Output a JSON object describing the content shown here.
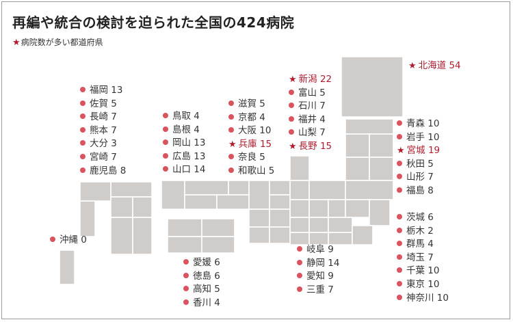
{
  "title": "再編や統合の検討を迫られた全国の424病院",
  "legend": {
    "marker": "★",
    "label": "病院数が多い都道府県"
  },
  "colors": {
    "highlight": "#b01c2e",
    "dot": "#d9545e",
    "tile": "#cfccca"
  },
  "groups": {
    "hokkaido": [
      {
        "label": "北海道 54",
        "marker": "star"
      }
    ],
    "kyushu": [
      {
        "label": "福岡 13",
        "marker": "dot"
      },
      {
        "label": "佐賀 5",
        "marker": "dot"
      },
      {
        "label": "長崎 7",
        "marker": "dot"
      },
      {
        "label": "熊本 7",
        "marker": "dot"
      },
      {
        "label": "大分 3",
        "marker": "dot"
      },
      {
        "label": "宮崎 7",
        "marker": "dot"
      },
      {
        "label": "鹿児島 8",
        "marker": "dot"
      }
    ],
    "chugoku": [
      {
        "label": "鳥取 4",
        "marker": "dot"
      },
      {
        "label": "島根 4",
        "marker": "dot"
      },
      {
        "label": "岡山 13",
        "marker": "dot"
      },
      {
        "label": "広島 13",
        "marker": "dot"
      },
      {
        "label": "山口 14",
        "marker": "dot"
      }
    ],
    "kinki": [
      {
        "label": "滋賀 5",
        "marker": "dot"
      },
      {
        "label": "京都 4",
        "marker": "dot"
      },
      {
        "label": "大阪 10",
        "marker": "dot"
      },
      {
        "label": "兵庫 15",
        "marker": "star"
      },
      {
        "label": "奈良 5",
        "marker": "dot"
      },
      {
        "label": "和歌山 5",
        "marker": "dot"
      }
    ],
    "hokuriku": [
      {
        "label": "新潟 22",
        "marker": "star"
      },
      {
        "label": "富山 5",
        "marker": "dot"
      },
      {
        "label": "石川 7",
        "marker": "dot"
      },
      {
        "label": "福井 4",
        "marker": "dot"
      },
      {
        "label": "山梨 7",
        "marker": "dot"
      },
      {
        "label": "長野 15",
        "marker": "star"
      }
    ],
    "tohoku": [
      {
        "label": "青森 10",
        "marker": "dot"
      },
      {
        "label": "岩手 10",
        "marker": "dot"
      },
      {
        "label": "宮城 19",
        "marker": "star"
      },
      {
        "label": "秋田 5",
        "marker": "dot"
      },
      {
        "label": "山形 7",
        "marker": "dot"
      },
      {
        "label": "福島 8",
        "marker": "dot"
      }
    ],
    "kanto": [
      {
        "label": "茨城 6",
        "marker": "dot"
      },
      {
        "label": "栃木 2",
        "marker": "dot"
      },
      {
        "label": "群馬 4",
        "marker": "dot"
      },
      {
        "label": "埼玉 7",
        "marker": "dot"
      },
      {
        "label": "千葉 10",
        "marker": "dot"
      },
      {
        "label": "東京 10",
        "marker": "dot"
      },
      {
        "label": "神奈川 10",
        "marker": "dot"
      }
    ],
    "okinawa": [
      {
        "label": "沖縄 0",
        "marker": "dot"
      }
    ],
    "shikoku": [
      {
        "label": "愛媛 6",
        "marker": "dot"
      },
      {
        "label": "徳島 6",
        "marker": "dot"
      },
      {
        "label": "高知 5",
        "marker": "dot"
      },
      {
        "label": "香川 4",
        "marker": "dot"
      }
    ],
    "tokai": [
      {
        "label": "岐阜 9",
        "marker": "dot"
      },
      {
        "label": "静岡 14",
        "marker": "dot"
      },
      {
        "label": "愛知 9",
        "marker": "dot"
      },
      {
        "label": "三重 7",
        "marker": "dot"
      }
    ]
  }
}
